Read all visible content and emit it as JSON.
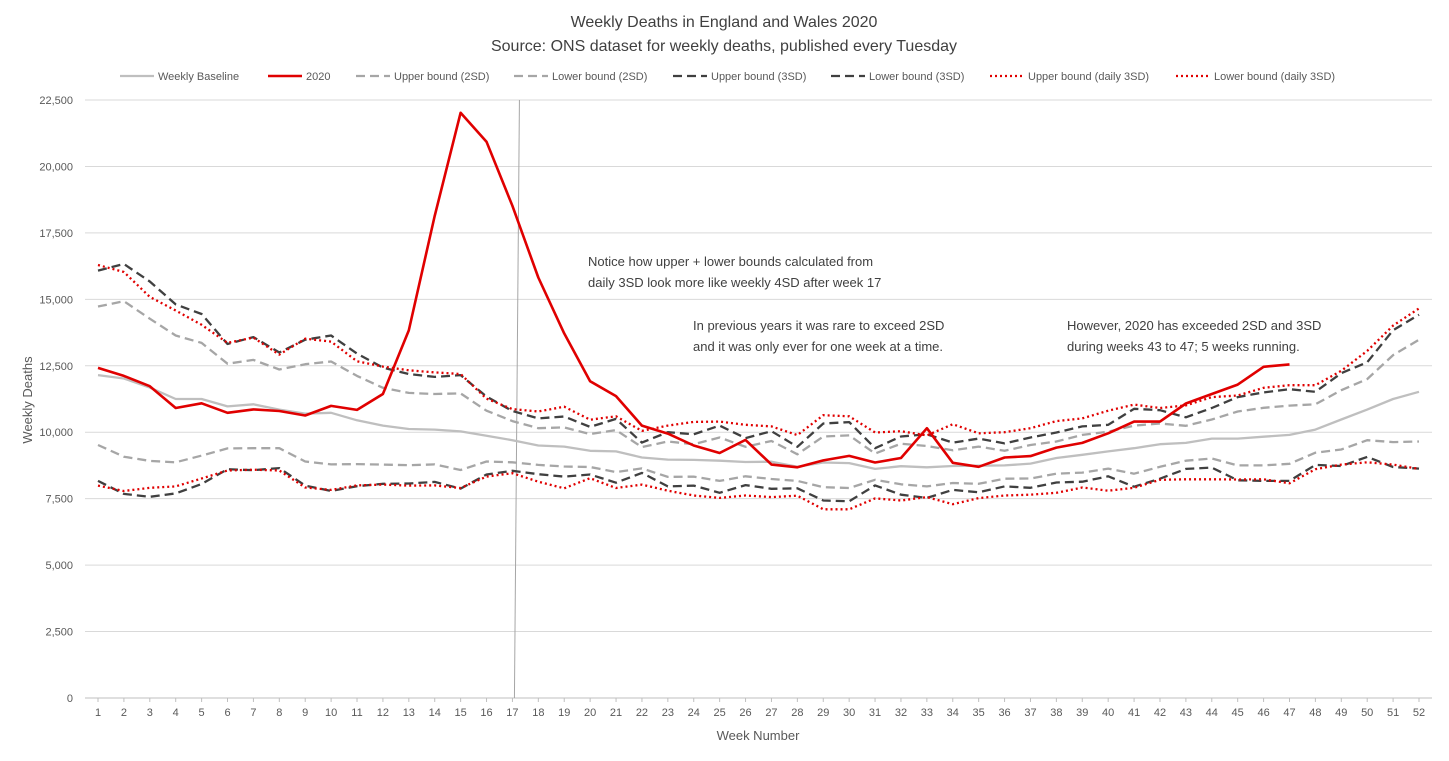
{
  "chart_data": {
    "type": "line",
    "title": "Weekly Deaths in England and Wales 2020",
    "subtitle": "Source: ONS dataset for weekly deaths, published every Tuesday",
    "xlabel": "Week Number",
    "ylabel": "Weekly Deaths",
    "xlim": [
      1,
      52
    ],
    "ylim": [
      0,
      22500
    ],
    "y_ticks": [
      0,
      2500,
      5000,
      7500,
      10000,
      12500,
      15000,
      17500,
      20000,
      22500
    ],
    "y_tick_labels": [
      "0",
      "2,500",
      "5,000",
      "7,500",
      "10,000",
      "12,500",
      "15,000",
      "17,500",
      "20,000",
      "22,500"
    ],
    "x_ticks": [
      1,
      2,
      3,
      4,
      5,
      6,
      7,
      8,
      9,
      10,
      11,
      12,
      13,
      14,
      15,
      16,
      17,
      18,
      19,
      20,
      21,
      22,
      23,
      24,
      25,
      26,
      27,
      28,
      29,
      30,
      31,
      32,
      33,
      34,
      35,
      36,
      37,
      38,
      39,
      40,
      41,
      42,
      43,
      44,
      45,
      46,
      47,
      48,
      49,
      50,
      51,
      52
    ],
    "x_tick_labels": [
      "1",
      "2",
      "3",
      "4",
      "5",
      "6",
      "7",
      "8",
      "9",
      "10",
      "11",
      "12",
      "13",
      "14",
      "15",
      "16",
      "17",
      "18",
      "19",
      "20",
      "21",
      "22",
      "23",
      "24",
      "25",
      "26",
      "27",
      "28",
      "29",
      "30",
      "31",
      "32",
      "33",
      "34",
      "35",
      "36",
      "37",
      "38",
      "39",
      "40",
      "41",
      "42",
      "43",
      "44",
      "45",
      "46",
      "47",
      "48",
      "49",
      "50",
      "51",
      "52"
    ],
    "grid": "horizontal",
    "legend_position": "top",
    "vertical_marker_x": 17,
    "series": [
      {
        "name": "Weekly Baseline",
        "color": "#bfbfbf",
        "dash": "solid",
        "values": [
          12150,
          12020,
          11680,
          11250,
          11250,
          10970,
          11050,
          10850,
          10700,
          10730,
          10450,
          10250,
          10120,
          10100,
          10030,
          9870,
          9700,
          9500,
          9460,
          9300,
          9280,
          9050,
          8970,
          8960,
          8930,
          8880,
          8890,
          8700,
          8860,
          8840,
          8620,
          8720,
          8680,
          8730,
          8740,
          8750,
          8820,
          9030,
          9150,
          9280,
          9400,
          9550,
          9600,
          9760,
          9760,
          9830,
          9900,
          10100,
          10480,
          10850,
          11250,
          11520
        ]
      },
      {
        "name": "2020",
        "color": "#e00000",
        "dash": "solid",
        "values": [
          12420,
          12120,
          11730,
          10910,
          11090,
          10730,
          10860,
          10800,
          10630,
          10990,
          10840,
          11440,
          13830,
          18140,
          22020,
          20930,
          18520,
          15820,
          13720,
          11920,
          11360,
          10250,
          9950,
          9500,
          9220,
          9710,
          8780,
          8680,
          8940,
          9110,
          8860,
          9030,
          10150,
          8850,
          8700,
          9050,
          9100,
          9420,
          9600,
          9960,
          10400,
          10400,
          11080,
          11440,
          11790,
          12460,
          12550,
          null,
          null,
          null,
          null,
          null
        ]
      },
      {
        "name": "Upper bound (2SD)",
        "color": "#a6a6a6",
        "dash": "dashed",
        "values": [
          14730,
          14930,
          14270,
          13640,
          13360,
          12580,
          12720,
          12360,
          12560,
          12660,
          12120,
          11670,
          11480,
          11440,
          11460,
          10810,
          10420,
          10150,
          10180,
          9930,
          10080,
          9440,
          9650,
          9550,
          9800,
          9450,
          9670,
          9170,
          9840,
          9880,
          9200,
          9570,
          9480,
          9320,
          9460,
          9300,
          9520,
          9650,
          9900,
          10020,
          10250,
          10330,
          10240,
          10480,
          10780,
          10920,
          11000,
          11050,
          11580,
          12000,
          12900,
          13480
        ]
      },
      {
        "name": "Lower bound (2SD)",
        "color": "#a6a6a6",
        "dash": "dashed",
        "values": [
          9520,
          9080,
          8920,
          8870,
          9120,
          9390,
          9400,
          9400,
          8900,
          8790,
          8800,
          8780,
          8760,
          8790,
          8580,
          8900,
          8870,
          8770,
          8710,
          8690,
          8500,
          8640,
          8320,
          8330,
          8170,
          8340,
          8240,
          8170,
          7930,
          7900,
          8210,
          8040,
          7960,
          8090,
          8060,
          8250,
          8260,
          8440,
          8480,
          8630,
          8440,
          8700,
          8930,
          9010,
          8750,
          8750,
          8810,
          9230,
          9350,
          9700,
          9630,
          9650
        ]
      },
      {
        "name": "Upper bound (3SD)",
        "color": "#404040",
        "dash": "dashed",
        "values": [
          16080,
          16330,
          15670,
          14810,
          14450,
          13320,
          13580,
          13000,
          13480,
          13640,
          12960,
          12430,
          12190,
          12080,
          12150,
          11340,
          10800,
          10520,
          10590,
          10200,
          10500,
          9610,
          10000,
          9920,
          10250,
          9780,
          10040,
          9450,
          10330,
          10380,
          9400,
          9840,
          9920,
          9610,
          9760,
          9580,
          9800,
          9990,
          10220,
          10280,
          10880,
          10830,
          10560,
          10910,
          11320,
          11500,
          11620,
          11520,
          12220,
          12630,
          13840,
          14420
        ]
      },
      {
        "name": "Lower bound (3SD)",
        "color": "#404040",
        "dash": "dashed",
        "values": [
          8170,
          7680,
          7570,
          7700,
          8050,
          8610,
          8570,
          8650,
          7990,
          7790,
          7970,
          8060,
          8070,
          8130,
          7880,
          8410,
          8550,
          8420,
          8330,
          8410,
          8100,
          8470,
          7960,
          7990,
          7720,
          8010,
          7870,
          7890,
          7430,
          7400,
          8000,
          7650,
          7530,
          7830,
          7740,
          7960,
          7910,
          8110,
          8140,
          8340,
          7950,
          8250,
          8620,
          8670,
          8190,
          8170,
          8170,
          8770,
          8730,
          9070,
          8690,
          8630
        ]
      },
      {
        "name": "Upper bound (daily 3SD)",
        "color": "#e00000",
        "dash": "dotted",
        "values": [
          16290,
          16030,
          15090,
          14580,
          14040,
          13360,
          13560,
          12920,
          13520,
          13410,
          12670,
          12470,
          12330,
          12250,
          12190,
          11260,
          10870,
          10780,
          10960,
          10470,
          10600,
          10050,
          10250,
          10390,
          10400,
          10280,
          10220,
          9890,
          10640,
          10600,
          9990,
          10040,
          9880,
          10300,
          9960,
          10000,
          10150,
          10420,
          10520,
          10810,
          11040,
          10910,
          11010,
          11320,
          11380,
          11670,
          11770,
          11770,
          12310,
          13060,
          14010,
          14660
        ]
      },
      {
        "name": "Lower bound (daily 3SD)",
        "color": "#e00000",
        "dash": "dotted",
        "values": [
          7990,
          7790,
          7910,
          7960,
          8260,
          8560,
          8590,
          8560,
          7920,
          7830,
          8000,
          8030,
          7990,
          8000,
          7900,
          8330,
          8460,
          8140,
          7890,
          8270,
          7900,
          8030,
          7800,
          7620,
          7530,
          7620,
          7560,
          7610,
          7100,
          7100,
          7510,
          7430,
          7560,
          7290,
          7520,
          7620,
          7650,
          7720,
          7920,
          7800,
          7910,
          8210,
          8230,
          8230,
          8220,
          8230,
          8080,
          8610,
          8780,
          8870,
          8780,
          8620
        ]
      }
    ],
    "annotations": [
      {
        "lines": [
          "Notice how upper + lower bounds calculated from",
          "daily 3SD look more like weekly 4SD after week 17"
        ]
      },
      {
        "lines": [
          "In previous years it was rare to exceed 2SD",
          "and it was only ever for one week at a time."
        ]
      },
      {
        "lines": [
          "However, 2020 has exceeded 2SD and 3SD",
          "during weeks 43 to 47; 5 weeks running."
        ]
      }
    ]
  }
}
